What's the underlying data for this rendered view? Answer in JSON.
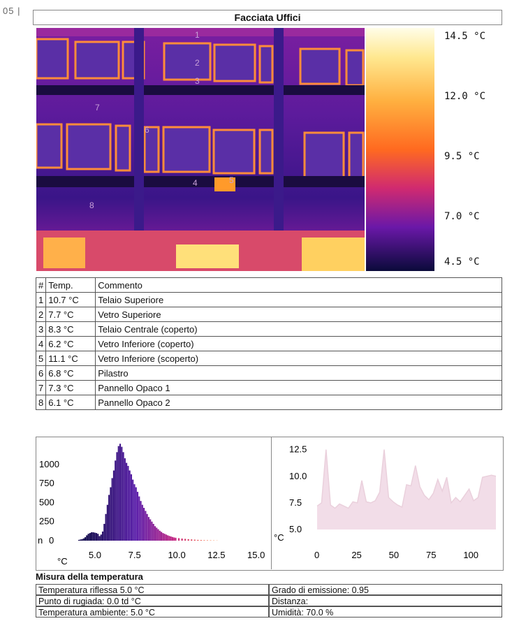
{
  "page_number": "05 |",
  "title": "Facciata Uffici",
  "scale": {
    "labels": [
      "14.5 °C",
      "12.0 °C",
      "9.5 °C",
      "7.0 °C",
      "4.5 °C"
    ]
  },
  "point_labels": [
    "1",
    "2",
    "3",
    "4",
    "5",
    "6",
    "7",
    "8"
  ],
  "table": {
    "headers": [
      "#",
      "Temp.",
      "Commento"
    ],
    "rows": [
      [
        "1",
        "10.7 °C",
        "Telaio Superiore"
      ],
      [
        "2",
        "7.7 °C",
        "Vetro Superiore"
      ],
      [
        "3",
        "8.3 °C",
        "Telaio Centrale (coperto)"
      ],
      [
        "4",
        "6.2 °C",
        "Vetro Inferiore (coperto)"
      ],
      [
        "5",
        "11.1 °C",
        "Vetro Inferiore (scoperto)"
      ],
      [
        "6",
        "6.8 °C",
        "Pilastro"
      ],
      [
        "7",
        "7.3 °C",
        "Pannello Opaco 1"
      ],
      [
        "8",
        "6.1 °C",
        "Pannello Opaco 2"
      ]
    ]
  },
  "chart_data": [
    {
      "type": "bar",
      "x": [
        3.9,
        4.0,
        4.1,
        4.2,
        4.3,
        4.4,
        4.5,
        4.6,
        4.7,
        4.8,
        4.9,
        5.0,
        5.1,
        5.2,
        5.3,
        5.4,
        5.5,
        5.6,
        5.7,
        5.8,
        5.9,
        6.0,
        6.1,
        6.2,
        6.3,
        6.4,
        6.5,
        6.6,
        6.7,
        6.8,
        6.9,
        7.0,
        7.1,
        7.2,
        7.3,
        7.4,
        7.5,
        7.6,
        7.7,
        7.8,
        7.9,
        8.0,
        8.1,
        8.2,
        8.3,
        8.4,
        8.5,
        8.6,
        8.7,
        8.8,
        8.9,
        9.0,
        9.1,
        9.2,
        9.3,
        9.4,
        9.5,
        9.6,
        9.7,
        9.8,
        9.9,
        10.0,
        10.2,
        10.4,
        10.6,
        10.8,
        11.0,
        11.2,
        11.4,
        11.6,
        11.8,
        12.0,
        12.2,
        12.4,
        12.6
      ],
      "values": [
        10,
        15,
        20,
        30,
        45,
        70,
        90,
        100,
        110,
        110,
        105,
        100,
        90,
        60,
        80,
        120,
        220,
        350,
        470,
        600,
        700,
        820,
        920,
        1050,
        1160,
        1240,
        1270,
        1230,
        1160,
        1080,
        1020,
        980,
        920,
        870,
        800,
        740,
        700,
        640,
        580,
        520,
        470,
        430,
        390,
        350,
        310,
        280,
        250,
        220,
        190,
        170,
        150,
        130,
        115,
        100,
        90,
        80,
        70,
        62,
        55,
        48,
        42,
        38,
        33,
        28,
        24,
        20,
        16,
        13,
        10,
        8,
        6,
        5,
        4,
        3,
        2
      ],
      "xlabel": "°C",
      "ylabel": "n",
      "xlim": [
        3.2,
        15.0
      ],
      "ylim": [
        0,
        1300
      ],
      "x_ticks": [
        "5.0",
        "7.5",
        "10.0",
        "12.5",
        "15.0"
      ],
      "y_ticks": [
        "0",
        "250",
        "500",
        "750",
        "1000"
      ]
    },
    {
      "type": "line",
      "x": [
        0,
        3,
        6,
        9,
        12,
        15,
        18,
        21,
        24,
        27,
        30,
        33,
        36,
        39,
        42,
        45,
        48,
        51,
        54,
        57,
        60,
        63,
        66,
        69,
        72,
        75,
        78,
        81,
        84,
        87,
        90,
        93,
        96,
        99,
        102,
        105,
        108,
        111,
        114,
        117,
        120
      ],
      "values": [
        7.2,
        7.5,
        12.5,
        7.3,
        7.0,
        7.4,
        7.2,
        7.0,
        7.6,
        7.5,
        9.6,
        7.6,
        7.5,
        7.7,
        8.5,
        12.5,
        8.0,
        7.6,
        7.3,
        7.1,
        9.2,
        9.1,
        11.0,
        9.0,
        8.2,
        7.8,
        8.4,
        9.7,
        8.6,
        9.9,
        7.5,
        8.0,
        7.6,
        8.2,
        8.8,
        7.7,
        8.0,
        9.9,
        10.0,
        10.1,
        10.0
      ],
      "xlabel": "",
      "ylabel": "°C",
      "xlim": [
        0,
        120
      ],
      "ylim": [
        5.0,
        13.0
      ],
      "x_ticks": [
        "0",
        "25",
        "50",
        "75",
        "100"
      ],
      "y_ticks": [
        "5.0",
        "7.5",
        "10.0",
        "12.5"
      ]
    }
  ],
  "measure": {
    "title": "Misura della temperatura",
    "left": [
      "Temperatura riflessa 5.0 °C",
      "Punto di rugiada: 0.0 td °C",
      "Temperatura ambiente: 5.0 °C"
    ],
    "right": [
      "Grado di emissione: 0.95",
      "Distanza:",
      "Umidità: 70.0 %"
    ]
  }
}
